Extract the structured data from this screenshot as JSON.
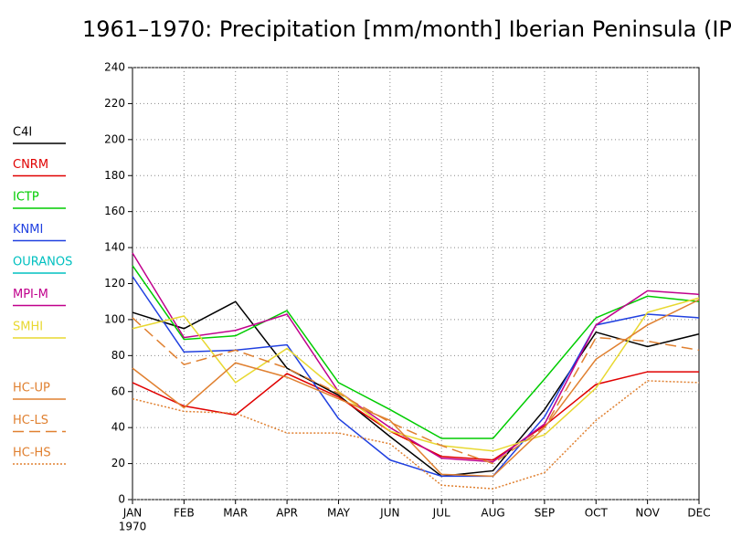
{
  "chart_data": {
    "type": "line",
    "title": "1961–1970: Precipitation [mm/month] Iberian Peninsula (IP",
    "categories": [
      "JAN",
      "FEB",
      "MAR",
      "APR",
      "MAY",
      "JUN",
      "JUL",
      "AUG",
      "SEP",
      "OCT",
      "NOV",
      "DEC"
    ],
    "x_year_label": "1970",
    "ylim": [
      0,
      240
    ],
    "yticks": [
      0,
      20,
      40,
      60,
      80,
      100,
      120,
      140,
      160,
      180,
      200,
      220,
      240
    ],
    "grid": true,
    "series": [
      {
        "name": "C4I",
        "color": "#000000",
        "style": "solid",
        "values": [
          104,
          95,
          110,
          73,
          58,
          35,
          13,
          16,
          50,
          93,
          85,
          92
        ]
      },
      {
        "name": "CNRM",
        "color": "#e00000",
        "style": "solid",
        "values": [
          65,
          52,
          47,
          70,
          57,
          38,
          24,
          22,
          41,
          64,
          71,
          71
        ]
      },
      {
        "name": "ICTP",
        "color": "#00cc00",
        "style": "solid",
        "values": [
          130,
          89,
          91,
          105,
          65,
          50,
          34,
          34,
          67,
          101,
          113,
          110
        ]
      },
      {
        "name": "KNMI",
        "color": "#2040e0",
        "style": "solid",
        "values": [
          124,
          82,
          83,
          86,
          45,
          22,
          13,
          13,
          46,
          97,
          103,
          101
        ]
      },
      {
        "name": "OURANOS",
        "color": "#00c0c0",
        "style": "solid",
        "values": [
          null,
          null,
          null,
          null,
          null,
          null,
          null,
          null,
          null,
          null,
          null,
          null
        ]
      },
      {
        "name": "MPI-M",
        "color": "#c0008c",
        "style": "solid",
        "values": [
          137,
          90,
          94,
          103,
          60,
          40,
          23,
          21,
          42,
          97,
          116,
          114
        ]
      },
      {
        "name": "SMHI",
        "color": "#e8d830",
        "style": "solid",
        "values": [
          95,
          102,
          65,
          84,
          60,
          38,
          30,
          27,
          36,
          62,
          104,
          112
        ]
      },
      {
        "name": "HC-UP",
        "color": "#e08030",
        "style": "solid",
        "values": [
          73,
          51,
          76,
          68,
          56,
          44,
          14,
          13,
          40,
          78,
          97,
          111
        ]
      },
      {
        "name": "HC-LS",
        "color": "#e08030",
        "style": "dashed",
        "values": [
          101,
          75,
          83,
          73,
          59,
          43,
          30,
          20,
          40,
          90,
          88,
          83
        ]
      },
      {
        "name": "HC-HS",
        "color": "#e08030",
        "style": "dotted",
        "values": [
          56,
          49,
          48,
          37,
          37,
          31,
          8,
          6,
          15,
          44,
          66,
          65
        ]
      }
    ]
  }
}
